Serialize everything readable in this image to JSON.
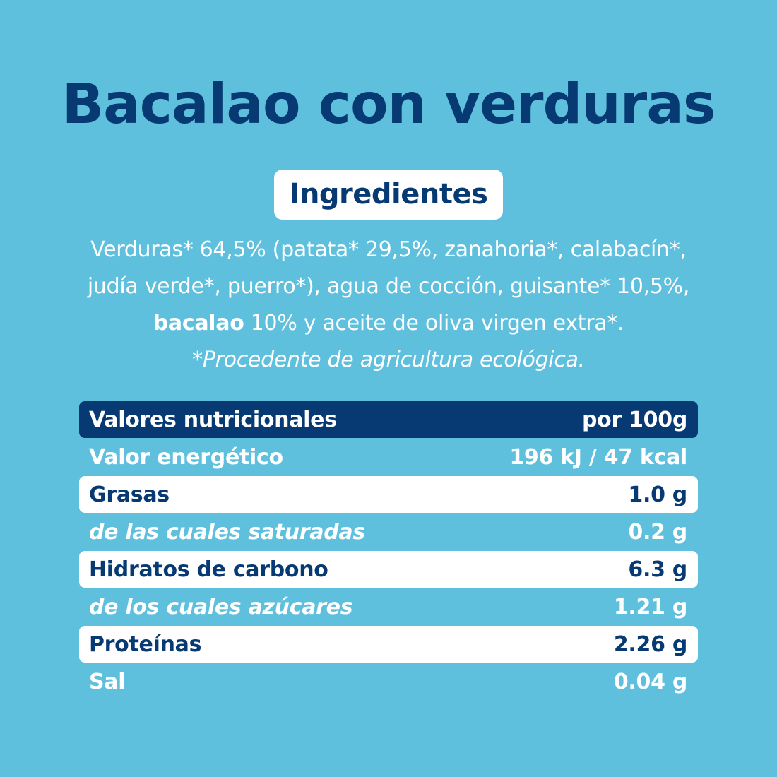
{
  "title": "Bacalao con verduras",
  "ingredients_heading": "Ingredientes",
  "ingredients": {
    "line1": "Verduras* 64,5% (patata* 29,5%, zanahoria*, calabacín*,",
    "line2": "judía verde*, puerro*), agua de cocción, guisante* 10,5%,",
    "line3_bold": "bacalao",
    "line3_rest": " 10% y aceite de oliva virgen extra*.",
    "note": "*Procedente de agricultura ecológica."
  },
  "nutrition": {
    "header_label": "Valores nutricionales",
    "header_unit": "por 100g",
    "rows": [
      {
        "label": "Valor energético",
        "value": "196 kJ / 47 kcal"
      },
      {
        "label": "Grasas",
        "value": "1.0 g"
      },
      {
        "label": "de las cuales saturadas",
        "value": "0.2 g"
      },
      {
        "label": "Hidratos de carbono",
        "value": "6.3 g"
      },
      {
        "label": "de los cuales azúcares",
        "value": "1.21 g"
      },
      {
        "label": "Proteínas",
        "value": "2.26 g"
      },
      {
        "label": "Sal",
        "value": "0.04 g"
      }
    ]
  },
  "colors": {
    "background": "#5fc0de",
    "navy": "#073a73",
    "white": "#ffffff"
  }
}
